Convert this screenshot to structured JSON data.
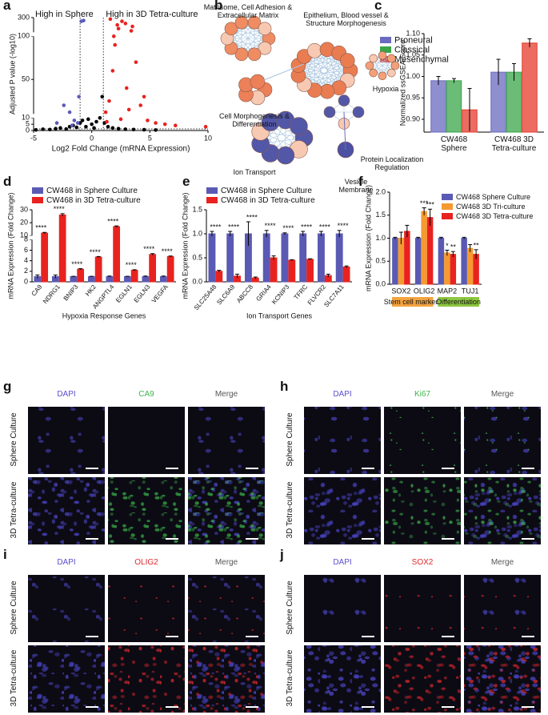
{
  "panel_labels": [
    "a",
    "b",
    "c",
    "d",
    "e",
    "f",
    "g",
    "h",
    "i",
    "j"
  ],
  "chart_data": [
    {
      "type": "scatter",
      "xlabel": "Log2 Fold Change (mRNA Expression)",
      "ylabel": "Adjusted P value (-log10)",
      "annotations": [
        {
          "text": "High in Sphere",
          "color": "#4b4ba8"
        },
        {
          "text": "High in 3D Tetra-culture",
          "color": "#e8231f"
        }
      ],
      "xlim": [
        -5,
        10
      ],
      "xticks": [
        -5,
        0,
        5,
        10
      ],
      "ylim": [
        0,
        300
      ],
      "yticks": [
        0,
        5,
        10,
        50,
        100,
        300
      ],
      "y_segments": [
        [
          0,
          10
        ],
        [
          10,
          100
        ],
        [
          100,
          300
        ]
      ],
      "threshold_lines": {
        "x": [
          -1,
          1
        ],
        "y": 1.3
      },
      "series": [
        {
          "color": "#000000",
          "x": [
            -4.8,
            -4.2,
            -3.6,
            -3.1,
            -2.7,
            -2.2,
            -1.9,
            -1.6,
            -1.3,
            -1.0,
            -0.8,
            -0.5,
            -0.3,
            0,
            0.2,
            0.4,
            0.7,
            0.9,
            1.1,
            1.4,
            1.8,
            2.3,
            2.9,
            3.6,
            4.5,
            5.5
          ],
          "values": [
            0.5,
            1,
            0.8,
            1.5,
            2,
            1.2,
            3,
            4,
            2.5,
            6,
            8,
            3,
            9,
            5,
            2,
            7,
            10,
            30,
            6,
            3,
            2,
            1.5,
            1,
            0.8,
            0.6,
            0.4
          ]
        },
        {
          "color": "#e8231f",
          "x": [
            1.2,
            1.5,
            1.8,
            2.0,
            2.3,
            2.6,
            3.0,
            3.4,
            3.8,
            4.2,
            4.8,
            5.5,
            6.3,
            7.2,
            1.6,
            2.2,
            2.9,
            3.5,
            4.5,
            1.3,
            2.5,
            3.2,
            9.8,
            1.9
          ],
          "values": [
            12,
            25,
            60,
            90,
            150,
            250,
            40,
            120,
            70,
            20,
            8,
            6,
            5,
            4,
            280,
            200,
            220,
            180,
            30,
            7,
            9,
            15,
            3,
            100
          ]
        },
        {
          "color": "#5b5bb8",
          "x": [
            -1.2,
            -1.5,
            -1.9,
            -2.4,
            -3.0,
            -1.1,
            -0.9,
            -1.7,
            -0.7
          ],
          "values": [
            6,
            8,
            12,
            20,
            6,
            30,
            250,
            4,
            260
          ]
        }
      ]
    },
    {
      "type": "bar",
      "ylabel": "Normalized ssGSEA Score",
      "categories": [
        "CW468 Sphere",
        "CW468 3D Tetra-culture"
      ],
      "ylim": [
        0.87,
        1.1
      ],
      "yticks": [
        {
          "value": 0.9,
          "label": "0.90"
        },
        {
          "value": 0.95,
          "label": "0.95"
        },
        {
          "value": 1.0,
          "label": "1.00"
        },
        {
          "value": 1.05,
          "label": "1.05"
        },
        {
          "value": 1.1,
          "label": "1.10"
        }
      ],
      "legend": "top left",
      "series": [
        {
          "name": "Proneural",
          "color": "#6a6ac0",
          "values": [
            0.99,
            1.01
          ],
          "errors": [
            0.01,
            0.03
          ]
        },
        {
          "name": "Classical",
          "color": "#3aa548",
          "values": [
            0.99,
            1.01
          ],
          "errors": [
            0.005,
            0.02
          ]
        },
        {
          "name": "Mesenchymal",
          "color": "#e63b2e",
          "values": [
            0.922,
            1.078
          ],
          "errors": [
            0.05,
            0.01
          ]
        }
      ]
    },
    {
      "type": "bar",
      "xlabel": "Hypoxia Response Genes",
      "ylabel": "mRNA Expression (Fold Change)",
      "categories": [
        "CA9",
        "NDRG1",
        "BNIP3",
        "HK2",
        "ANGPTL4",
        "EGLN1",
        "EGLN3",
        "VEGFA"
      ],
      "ylim": [
        0,
        30
      ],
      "yticks": [
        0,
        2,
        4,
        6,
        8,
        10,
        20,
        30
      ],
      "y_segments": [
        [
          0,
          8
        ],
        [
          10,
          30
        ]
      ],
      "legend": "top left",
      "annotations": [
        "****",
        "****",
        "****",
        "****",
        "****",
        "****",
        "****",
        "****"
      ],
      "series": [
        {
          "name": "CW468 in Sphere Culture",
          "color": "#5a5ab4",
          "values": [
            1,
            1,
            1,
            1,
            1,
            1,
            1,
            1
          ],
          "errors": [
            0.3,
            0.3,
            0.05,
            0.05,
            0.1,
            0.05,
            0.1,
            0.1
          ]
        },
        {
          "name": "CW468 in 3D Tetra-culture",
          "color": "#e8231f",
          "values": [
            12,
            26,
            2.4,
            4.7,
            17,
            2.2,
            5.2,
            4.8
          ],
          "errors": [
            0.5,
            1,
            0.1,
            0.1,
            0.5,
            0.1,
            0.15,
            0.1
          ]
        }
      ]
    },
    {
      "type": "bar",
      "xlabel": "Ion Transport Genes",
      "ylabel": "mRNA Expression (Fold Change)",
      "categories": [
        "SLC25A48",
        "SLC6A9",
        "ABCC8",
        "GRIA4",
        "KCNIP3",
        "TFRC",
        "FLVCR2",
        "SLC7A11"
      ],
      "ylim": [
        0,
        1.5
      ],
      "yticks": [
        {
          "value": 0,
          "label": "0.0"
        },
        {
          "value": 0.5,
          "label": "0.5"
        },
        {
          "value": 1,
          "label": "1.0"
        },
        {
          "value": 1.5,
          "label": "1.5"
        }
      ],
      "legend": "top left",
      "annotations": [
        "****",
        "****",
        "****",
        "****",
        "****",
        "****",
        "****",
        "****"
      ],
      "series": [
        {
          "name": "CW468 in Sphere Culture",
          "color": "#5a5ab4",
          "values": [
            1,
            1,
            1,
            1,
            1,
            1,
            1,
            1
          ],
          "errors": [
            0.05,
            0.05,
            0.25,
            0.07,
            0.02,
            0.05,
            0.05,
            0.07
          ]
        },
        {
          "name": "CW468 in 3D Tetra-culture",
          "color": "#e8231f",
          "values": [
            0.22,
            0.12,
            0.08,
            0.5,
            0.45,
            0.47,
            0.13,
            0.31
          ],
          "errors": [
            0.02,
            0.04,
            0.02,
            0.04,
            0.01,
            0.01,
            0.03,
            0.02
          ]
        }
      ]
    },
    {
      "type": "bar",
      "ylabel": "mRNA Expression (Fold Change)",
      "categories": [
        "SOX2",
        "OLIG2",
        "MAP2",
        "TUJ1"
      ],
      "ylim": [
        0,
        2
      ],
      "yticks": [
        {
          "value": 0,
          "label": "0.0"
        },
        {
          "value": 0.5,
          "label": "0.5"
        },
        {
          "value": 1,
          "label": "1.0"
        },
        {
          "value": 1.5,
          "label": "1.5"
        },
        {
          "value": 2,
          "label": "2.0"
        }
      ],
      "legend": "upper right",
      "groups": [
        {
          "label": "Stem cell markers",
          "color": "#f4a340"
        },
        {
          "label": "Differentiation",
          "color": "#8dc63f"
        }
      ],
      "series": [
        {
          "name": "CW468 Sphere Culture",
          "color": "#5a5ab4",
          "values": [
            1,
            1,
            1,
            1
          ],
          "errors": [
            0.02,
            0.02,
            0.02,
            0.02
          ]
        },
        {
          "name": "CW468 3D Tri-culture",
          "color": "#f59a30",
          "values": [
            1.0,
            1.58,
            0.68,
            0.78
          ],
          "errors": [
            0.13,
            0.08,
            0.06,
            0.08
          ],
          "annotations": [
            null,
            "***",
            "*",
            null
          ]
        },
        {
          "name": "CW468 3D Tetra-culture",
          "color": "#e8231f",
          "values": [
            1.15,
            1.45,
            0.65,
            0.65
          ],
          "errors": [
            0.13,
            0.18,
            0.06,
            0.1
          ],
          "annotations": [
            null,
            "***",
            "**",
            "**"
          ]
        }
      ]
    }
  ],
  "network": {
    "clusters": [
      "Matrisome, Cell Adhesion & Extracellular Matrix",
      "Epithelium, Blood vessel & Structure Morphogenesis",
      "Hypoxia",
      "Cell Morphogenesis & Differentiation",
      "Ion Transport",
      "Protein Localization Regulation",
      "Vesicle Membrane"
    ]
  },
  "micrographs": [
    {
      "columns": [
        "DAPI",
        "CA9",
        "Merge"
      ],
      "rows": [
        "Sphere Culture",
        "3D Tetra-culture"
      ],
      "column_colors": [
        "#5a4fcf",
        "#3cb54a",
        "#555555"
      ]
    },
    {
      "columns": [
        "DAPI",
        "Ki67",
        "Merge"
      ],
      "rows": [
        "Sphere Culture",
        "3D Tetra-culture"
      ],
      "column_colors": [
        "#5a4fcf",
        "#3cb54a",
        "#555555"
      ]
    },
    {
      "columns": [
        "DAPI",
        "OLIG2",
        "Merge"
      ],
      "rows": [
        "Sphere Culture",
        "3D Tetra-culture"
      ],
      "column_colors": [
        "#5a4fcf",
        "#e0282e",
        "#555555"
      ]
    },
    {
      "columns": [
        "DAPI",
        "SOX2",
        "Merge"
      ],
      "rows": [
        "Sphere Culture",
        "3D Tetra-culture"
      ],
      "column_colors": [
        "#5a4fcf",
        "#e0282e",
        "#555555"
      ]
    }
  ]
}
